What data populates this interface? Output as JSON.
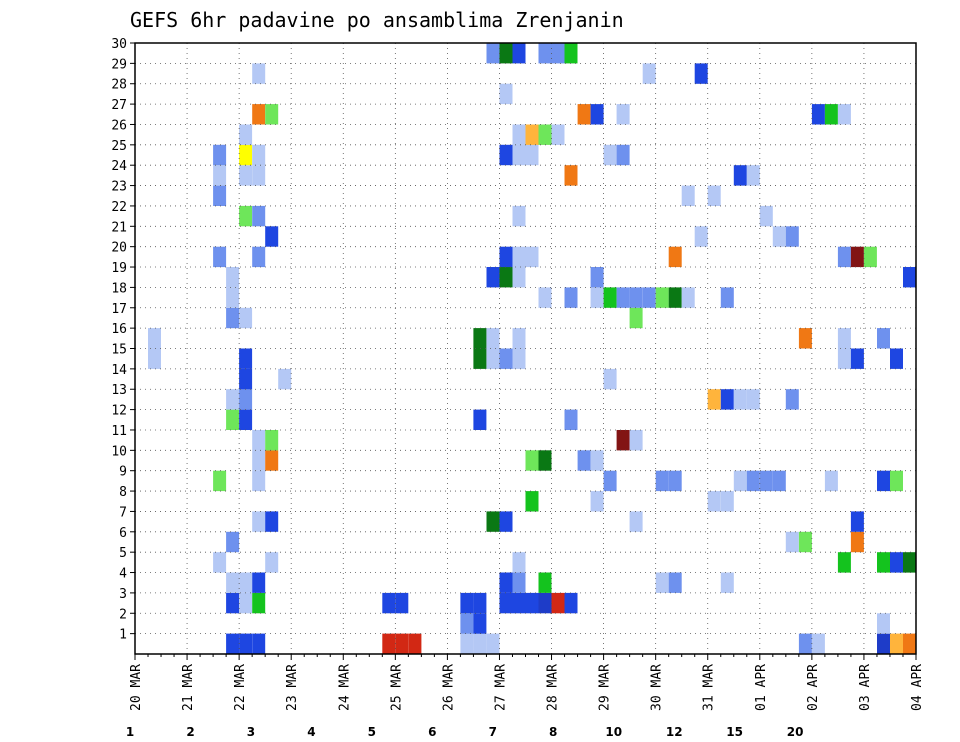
{
  "chart_data": {
    "type": "heatmap",
    "title": "GEFS 6hr padavine po ansamblima Zrenjanin",
    "xlabel": "",
    "ylabel": "",
    "x_ticks": [
      "20 MAR",
      "21 MAR",
      "22 MAR",
      "23 MAR",
      "24 MAR",
      "25 MAR",
      "26 MAR",
      "27 MAR",
      "28 MAR",
      "29 MAR",
      "30 MAR",
      "31 MAR",
      "01 APR",
      "02 APR",
      "03 APR",
      "04 APR"
    ],
    "y_ticks": [
      1,
      2,
      3,
      4,
      5,
      6,
      7,
      8,
      9,
      10,
      11,
      12,
      13,
      14,
      15,
      16,
      17,
      18,
      19,
      20,
      21,
      22,
      23,
      24,
      25,
      26,
      27,
      28,
      29,
      30
    ],
    "x_range_steps": [
      0,
      60
    ],
    "y_range": [
      0,
      30
    ],
    "steps_per_day": 4,
    "grid": true,
    "legend": {
      "position": "bottom",
      "labels": [
        "1",
        "2",
        "3",
        "4",
        "5",
        "6",
        "7",
        "8",
        "10",
        "12",
        "15",
        "20"
      ],
      "colors": [
        "#b4c8f5",
        "#6e91ee",
        "#1e46e1",
        "#1e3cc8",
        "#6ee65a",
        "#14c31e",
        "#0a7814",
        "#ffff00",
        "#ffb43c",
        "#f07814",
        "#d22814",
        "#821414",
        "#5a0a0a"
      ]
    },
    "cells": [
      [
        53,
        1,
        2
      ],
      [
        56,
        1,
        1
      ],
      [
        57,
        1,
        1
      ],
      [
        58,
        1,
        1
      ],
      [
        59,
        1,
        1
      ],
      [
        60,
        1,
        1
      ],
      [
        55,
        2,
        1
      ],
      [
        56,
        2,
        1
      ],
      [
        57,
        2,
        1
      ],
      [
        58,
        2,
        1
      ],
      [
        59,
        2,
        1
      ],
      [
        60,
        2,
        1
      ],
      [
        58,
        3,
        1
      ],
      [
        59,
        3,
        1
      ],
      [
        1,
        4,
        1
      ],
      [
        2,
        4,
        1
      ],
      [
        3,
        4,
        1
      ],
      [
        20,
        5,
        3
      ],
      [
        21,
        5,
        3
      ],
      [
        22,
        5,
        3
      ],
      [
        23,
        5,
        3
      ],
      [
        24,
        5,
        3
      ],
      [
        25,
        5,
        3
      ],
      [
        26,
        5,
        3
      ],
      [
        27,
        5,
        2
      ],
      [
        54,
        5,
        1
      ],
      [
        55,
        5,
        1
      ],
      [
        56,
        5,
        1
      ],
      [
        57,
        5,
        1
      ],
      [
        58,
        5,
        1
      ],
      [
        59,
        5,
        1
      ],
      [
        60,
        5,
        1
      ],
      [
        30,
        6,
        1
      ],
      [
        47,
        6,
        3
      ],
      [
        48,
        6,
        2
      ],
      [
        49,
        7,
        1
      ],
      [
        50,
        7,
        1
      ],
      [
        51,
        7,
        1
      ],
      [
        52,
        7,
        1
      ],
      [
        53,
        7,
        1
      ],
      [
        54,
        7,
        1
      ],
      [
        5,
        8,
        1
      ],
      [
        6,
        8,
        1
      ],
      [
        7,
        8,
        1
      ],
      [
        60,
        9,
        1
      ],
      [
        8,
        10,
        3
      ],
      [
        9,
        10,
        3
      ],
      [
        12,
        11,
        1
      ],
      [
        13,
        11,
        1
      ],
      [
        14,
        11,
        1
      ],
      [
        36,
        12,
        2
      ],
      [
        37,
        12,
        2
      ],
      [
        45,
        13,
        1
      ],
      [
        17,
        14,
        1
      ],
      [
        18,
        14,
        1
      ],
      [
        19,
        14,
        1
      ],
      [
        24,
        15,
        1
      ],
      [
        25,
        15,
        1
      ],
      [
        26,
        15,
        1
      ],
      [
        2,
        16,
        4
      ],
      [
        3,
        16,
        4
      ],
      [
        10,
        17,
        3
      ],
      [
        11,
        17,
        3
      ],
      [
        12,
        17,
        2
      ],
      [
        59,
        18,
        1
      ],
      [
        60,
        18,
        1
      ],
      [
        30,
        19,
        1
      ],
      [
        31,
        19,
        1
      ],
      [
        32,
        19,
        1
      ],
      [
        33,
        19,
        1
      ],
      [
        34,
        19,
        1
      ],
      [
        38,
        20,
        2
      ],
      [
        39,
        20,
        2
      ],
      [
        44,
        21,
        3
      ],
      [
        45,
        21,
        2
      ],
      [
        46,
        21,
        1
      ],
      [
        47,
        21,
        1
      ],
      [
        56,
        22,
        1
      ],
      [
        57,
        22,
        1
      ],
      [
        16,
        23,
        2
      ],
      [
        17,
        23,
        1
      ],
      [
        7,
        24,
        3
      ],
      [
        6,
        25,
        4
      ],
      [
        7,
        25,
        4
      ],
      [
        11,
        26,
        2
      ],
      [
        12,
        26,
        1
      ],
      [
        44,
        27,
        2
      ],
      [
        14,
        28,
        1
      ],
      [
        15,
        28,
        1
      ],
      [
        16,
        28,
        1
      ],
      [
        17,
        28,
        1
      ],
      [
        18,
        28,
        1
      ],
      [
        19,
        28,
        1
      ],
      [
        20,
        28,
        1
      ],
      [
        48,
        29,
        2
      ],
      [
        22,
        30,
        1
      ],
      [
        23,
        30,
        1
      ],
      [
        40,
        31,
        1
      ],
      [
        41,
        31,
        1
      ],
      [
        42,
        31,
        1
      ],
      [
        43,
        31,
        1
      ],
      [
        44,
        31,
        1
      ],
      [
        45,
        31,
        1
      ],
      [
        26,
        32,
        1
      ],
      [
        27,
        32,
        1
      ],
      [
        22,
        33,
        1
      ],
      [
        23,
        33,
        1
      ],
      [
        40,
        34,
        3
      ],
      [
        41,
        34,
        3
      ],
      [
        42,
        34,
        3
      ],
      [
        43,
        34,
        2
      ],
      [
        44,
        34,
        2
      ],
      [
        33,
        35,
        1
      ],
      [
        34,
        35,
        1
      ],
      [
        35,
        35,
        1
      ],
      [
        36,
        35,
        1
      ],
      [
        37,
        35,
        1
      ],
      [
        19,
        36,
        1
      ],
      [
        20,
        36,
        1
      ],
      [
        21,
        36,
        1
      ],
      [
        26,
        37,
        2
      ],
      [
        27,
        37,
        2
      ],
      [
        28,
        37,
        2
      ],
      [
        24,
        38,
        2
      ],
      [
        25,
        38,
        2
      ],
      [
        26,
        38,
        2
      ],
      [
        39,
        39,
        1
      ],
      [
        40,
        39,
        1
      ],
      [
        41,
        39,
        1
      ],
      [
        42,
        39,
        1
      ],
      [
        43,
        39,
        1
      ],
      [
        44,
        39,
        1
      ],
      [
        29,
        40,
        2
      ],
      [
        30,
        40,
        2
      ],
      [
        52,
        41,
        1
      ],
      [
        53,
        41,
        1
      ],
      [
        54,
        41,
        1
      ],
      [
        10,
        42,
        1
      ],
      [
        11,
        42,
        1
      ],
      [
        12,
        42,
        1
      ],
      [
        24,
        43,
        1
      ],
      [
        25,
        43,
        1
      ],
      [
        36,
        44,
        3
      ],
      [
        37,
        44,
        3
      ],
      [
        20,
        45,
        2
      ],
      [
        21,
        45,
        2
      ],
      [
        22,
        45,
        1
      ],
      [
        23,
        45,
        1
      ],
      [
        24,
        45,
        1
      ],
      [
        48,
        46,
        3
      ],
      [
        49,
        46,
        3
      ],
      [
        50,
        46,
        3
      ],
      [
        35,
        47,
        1
      ],
      [
        36,
        47,
        1
      ],
      [
        33,
        48,
        1
      ],
      [
        34,
        48,
        1
      ],
      [
        50,
        49,
        1
      ],
      [
        51,
        49,
        1
      ],
      [
        28,
        50,
        1
      ],
      [
        29,
        50,
        1
      ],
      [
        30,
        50,
        1
      ],
      [
        55,
        51,
        4
      ],
      [
        56,
        51,
        4
      ],
      [
        57,
        52,
        1
      ],
      [
        58,
        52,
        1
      ],
      [
        44,
        53,
        3
      ],
      [
        45,
        53,
        2
      ],
      [
        20,
        54,
        2
      ],
      [
        21,
        54,
        2
      ],
      [
        22,
        54,
        3
      ],
      [
        23,
        54,
        3
      ],
      [
        24,
        54,
        3
      ],
      [
        25,
        54,
        2
      ],
      [
        50,
        55,
        1
      ],
      [
        51,
        55,
        1
      ],
      [
        52,
        55,
        1
      ],
      [
        53,
        55,
        1
      ],
      [
        35,
        56,
        2
      ],
      [
        36,
        56,
        2
      ],
      [
        29,
        57,
        1
      ],
      [
        30,
        57,
        1
      ],
      [
        31,
        57,
        1
      ],
      [
        32,
        57,
        1
      ],
      [
        52,
        58,
        1
      ],
      [
        53,
        58,
        1
      ],
      [
        20,
        59,
        1
      ],
      [
        21,
        59,
        1
      ],
      [
        55,
        60,
        1
      ],
      [
        56,
        60,
        1
      ],
      [
        57,
        60,
        1
      ],
      [
        6,
        61,
        1
      ],
      [
        7,
        61,
        1
      ],
      [
        8,
        61,
        1
      ],
      [
        50,
        62,
        2
      ],
      [
        51,
        62,
        2
      ],
      [
        45,
        63,
        1
      ],
      [
        46,
        63,
        1
      ],
      [
        40,
        64,
        3
      ],
      [
        41,
        64,
        3
      ],
      [
        42,
        64,
        3
      ],
      [
        27,
        65,
        1
      ],
      [
        28,
        65,
        1
      ],
      [
        29,
        65,
        1
      ],
      [
        45,
        66,
        2
      ],
      [
        46,
        66,
        2
      ],
      [
        54,
        67,
        3
      ],
      [
        26,
        68,
        1
      ],
      [
        27,
        68,
        1
      ],
      [
        28,
        68,
        1
      ],
      [
        29,
        68,
        1
      ],
      [
        30,
        68,
        1
      ]
    ],
    "color_marks": [
      {
        "day": "20 MAR",
        "note": ""
      }
    ]
  },
  "overlay": [
    [
      8,
      1,
      3
    ],
    [
      9,
      1,
      3
    ],
    [
      10,
      1,
      3
    ],
    [
      20,
      1,
      11
    ],
    [
      21,
      1,
      11
    ],
    [
      22,
      1,
      11
    ],
    [
      26,
      1,
      1
    ],
    [
      27,
      1,
      1
    ],
    [
      28,
      1,
      1
    ],
    [
      52,
      1,
      2
    ],
    [
      53,
      1,
      1
    ],
    [
      58,
      1,
      4
    ],
    [
      59,
      1,
      9
    ],
    [
      60,
      1,
      10
    ],
    [
      58,
      2,
      1
    ],
    [
      26,
      2,
      2
    ],
    [
      27,
      2,
      3
    ],
    [
      29,
      3,
      3
    ],
    [
      30,
      3,
      3
    ],
    [
      26,
      3,
      3
    ],
    [
      27,
      3,
      3
    ],
    [
      31,
      3,
      3
    ],
    [
      32,
      3,
      4
    ],
    [
      33,
      3,
      11
    ],
    [
      34,
      3,
      3
    ],
    [
      20,
      3,
      3
    ],
    [
      21,
      3,
      3
    ],
    [
      8,
      3,
      3
    ],
    [
      9,
      3,
      1
    ],
    [
      10,
      3,
      6
    ],
    [
      8,
      4,
      1
    ],
    [
      9,
      4,
      1
    ],
    [
      10,
      4,
      3
    ],
    [
      29,
      4,
      3
    ],
    [
      30,
      4,
      2
    ],
    [
      32,
      4,
      6
    ],
    [
      41,
      4,
      1
    ],
    [
      42,
      4,
      2
    ],
    [
      46,
      4,
      1
    ],
    [
      7,
      5,
      1
    ],
    [
      11,
      5,
      1
    ],
    [
      55,
      5,
      6
    ],
    [
      58,
      5,
      6
    ],
    [
      59,
      5,
      3
    ],
    [
      60,
      5,
      7
    ],
    [
      30,
      5,
      1
    ],
    [
      8,
      6,
      2
    ],
    [
      51,
      6,
      1
    ],
    [
      52,
      6,
      5
    ],
    [
      56,
      6,
      10
    ],
    [
      10,
      7,
      1
    ],
    [
      11,
      7,
      3
    ],
    [
      28,
      7,
      7
    ],
    [
      29,
      7,
      3
    ],
    [
      39,
      7,
      1
    ],
    [
      56,
      7,
      3
    ],
    [
      31,
      8,
      6
    ],
    [
      36,
      8,
      1
    ],
    [
      45,
      8,
      1
    ],
    [
      46,
      8,
      1
    ],
    [
      7,
      9,
      5
    ],
    [
      10,
      9,
      1
    ],
    [
      37,
      9,
      2
    ],
    [
      41,
      9,
      2
    ],
    [
      42,
      9,
      2
    ],
    [
      47,
      9,
      1
    ],
    [
      48,
      9,
      2
    ],
    [
      49,
      9,
      2
    ],
    [
      50,
      9,
      2
    ],
    [
      54,
      9,
      1
    ],
    [
      58,
      9,
      3
    ],
    [
      59,
      9,
      5
    ],
    [
      10,
      10,
      1
    ],
    [
      11,
      10,
      10
    ],
    [
      31,
      10,
      5
    ],
    [
      32,
      10,
      7
    ],
    [
      35,
      10,
      2
    ],
    [
      36,
      10,
      1
    ],
    [
      10,
      11,
      1
    ],
    [
      11,
      11,
      5
    ],
    [
      38,
      11,
      12
    ],
    [
      39,
      11,
      1
    ],
    [
      8,
      12,
      5
    ],
    [
      9,
      12,
      3
    ],
    [
      27,
      12,
      3
    ],
    [
      34,
      12,
      2
    ],
    [
      8,
      13,
      1
    ],
    [
      9,
      13,
      2
    ],
    [
      45,
      13,
      9
    ],
    [
      46,
      13,
      3
    ],
    [
      47,
      13,
      1
    ],
    [
      48,
      13,
      1
    ],
    [
      51,
      13,
      2
    ],
    [
      9,
      14,
      3
    ],
    [
      12,
      14,
      1
    ],
    [
      37,
      14,
      1
    ],
    [
      9,
      15,
      3
    ],
    [
      29,
      15,
      2
    ],
    [
      2,
      15,
      1
    ],
    [
      27,
      15,
      7
    ],
    [
      28,
      15,
      1
    ],
    [
      30,
      15,
      1
    ],
    [
      55,
      15,
      1
    ],
    [
      56,
      15,
      3
    ],
    [
      59,
      15,
      3
    ],
    [
      2,
      16,
      1
    ],
    [
      27,
      16,
      7
    ],
    [
      28,
      16,
      1
    ],
    [
      30,
      16,
      1
    ],
    [
      55,
      16,
      1
    ],
    [
      58,
      16,
      2
    ],
    [
      52,
      16,
      10
    ],
    [
      8,
      17,
      2
    ],
    [
      9,
      17,
      1
    ],
    [
      39,
      17,
      5
    ],
    [
      8,
      18,
      1
    ],
    [
      32,
      18,
      1
    ],
    [
      34,
      18,
      2
    ],
    [
      36,
      18,
      1
    ],
    [
      37,
      18,
      6
    ],
    [
      38,
      18,
      2
    ],
    [
      39,
      18,
      2
    ],
    [
      40,
      18,
      2
    ],
    [
      41,
      18,
      5
    ],
    [
      42,
      18,
      7
    ],
    [
      43,
      18,
      1
    ],
    [
      46,
      18,
      2
    ],
    [
      8,
      19,
      1
    ],
    [
      28,
      19,
      3
    ],
    [
      29,
      19,
      7
    ],
    [
      30,
      19,
      1
    ],
    [
      36,
      19,
      2
    ],
    [
      60,
      19,
      3
    ],
    [
      7,
      20,
      2
    ],
    [
      10,
      20,
      2
    ],
    [
      29,
      20,
      3
    ],
    [
      30,
      20,
      1
    ],
    [
      31,
      20,
      1
    ],
    [
      42,
      20,
      10
    ],
    [
      55,
      20,
      2
    ],
    [
      56,
      20,
      12
    ],
    [
      57,
      20,
      5
    ],
    [
      11,
      21,
      3
    ],
    [
      44,
      21,
      1
    ],
    [
      50,
      21,
      1
    ],
    [
      51,
      21,
      2
    ],
    [
      9,
      22,
      5
    ],
    [
      10,
      22,
      2
    ],
    [
      30,
      22,
      1
    ],
    [
      49,
      22,
      1
    ],
    [
      7,
      23,
      2
    ],
    [
      43,
      23,
      1
    ],
    [
      45,
      23,
      1
    ],
    [
      7,
      24,
      1
    ],
    [
      9,
      24,
      1
    ],
    [
      10,
      24,
      1
    ],
    [
      34,
      24,
      10
    ],
    [
      47,
      24,
      3
    ],
    [
      48,
      24,
      1
    ],
    [
      7,
      25,
      2
    ],
    [
      9,
      25,
      8
    ],
    [
      10,
      25,
      1
    ],
    [
      29,
      25,
      3
    ],
    [
      30,
      25,
      1
    ],
    [
      31,
      25,
      1
    ],
    [
      37,
      25,
      1
    ],
    [
      38,
      25,
      2
    ],
    [
      9,
      26,
      1
    ],
    [
      30,
      26,
      1
    ],
    [
      31,
      26,
      9
    ],
    [
      32,
      26,
      5
    ],
    [
      33,
      26,
      1
    ],
    [
      10,
      27,
      10
    ],
    [
      11,
      27,
      5
    ],
    [
      35,
      27,
      10
    ],
    [
      36,
      27,
      3
    ],
    [
      38,
      27,
      1
    ],
    [
      53,
      27,
      3
    ],
    [
      54,
      27,
      6
    ],
    [
      55,
      27,
      1
    ],
    [
      29,
      28,
      1
    ],
    [
      10,
      29,
      1
    ],
    [
      40,
      29,
      1
    ],
    [
      44,
      29,
      3
    ],
    [
      28,
      30,
      2
    ],
    [
      29,
      30,
      7
    ],
    [
      30,
      30,
      3
    ],
    [
      32,
      30,
      2
    ],
    [
      33,
      30,
      2
    ],
    [
      34,
      30,
      6
    ]
  ]
}
